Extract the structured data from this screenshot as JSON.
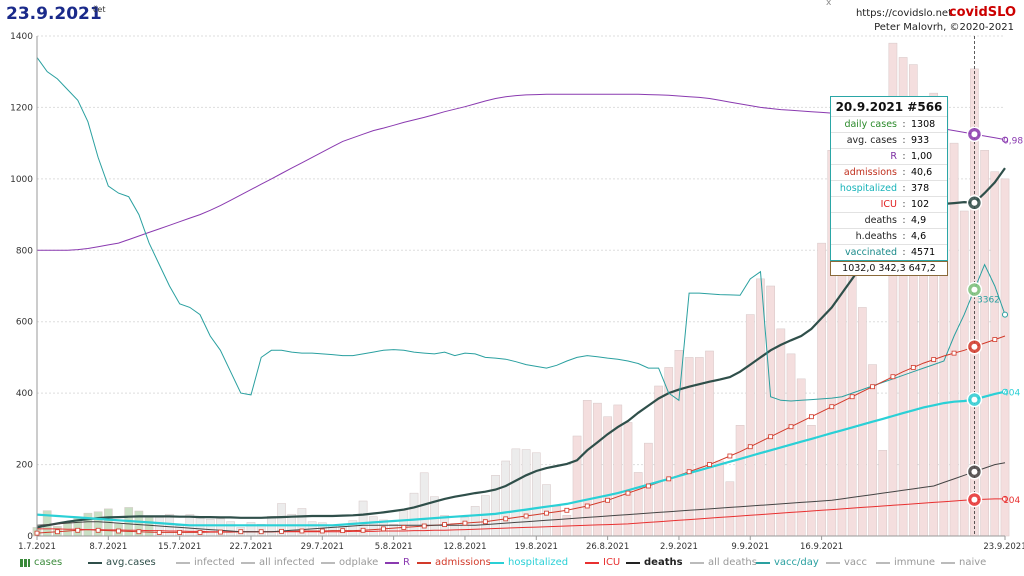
{
  "header": {
    "date": "23.9.2021",
    "weekday": "čet",
    "url": "https://covidslo.net",
    "brand_part1": "covid",
    "brand_part2": "SLO",
    "author": "Peter Malovrh, ©2020-2021",
    "close_mark": "x"
  },
  "colors": {
    "cases_bar": "#c9dfc4",
    "cases_bar_new": "#f4dede",
    "avg_cases": "#2f4f4a",
    "R": "#8a3ab0",
    "admissions": "#d23a2a",
    "hospitalized": "#2ad0d6",
    "ICU": "#e83030",
    "deaths": "#444444",
    "vacc_day": "#2aa0a0",
    "grid": "#dddddd"
  },
  "tooltip": {
    "title": "20.9.2021 #566",
    "rows": [
      {
        "label": "daily cases",
        "value": "1308",
        "color": "#2a8a2a"
      },
      {
        "label": "avg. cases",
        "value": "933",
        "color": "#222222"
      },
      {
        "label": "R",
        "value": "1,00",
        "color": "#7a2aa0"
      },
      {
        "label": "admissions",
        "value": "40,6",
        "color": "#c0301e"
      },
      {
        "label": "hospitalized",
        "value": "378",
        "color": "#17b3b9"
      },
      {
        "label": "ICU",
        "value": "102",
        "color": "#e02020"
      },
      {
        "label": "deaths",
        "value": "4,9",
        "color": "#222222"
      },
      {
        "label": "h.deaths",
        "value": "4,6",
        "color": "#222222"
      },
      {
        "label": "vaccinated",
        "value": "4571",
        "color": "#1a8a8a"
      }
    ],
    "bottom": "1032,0   342,3   647,2"
  },
  "legend": [
    {
      "label": "cases",
      "color": "#3a8a3a",
      "kind": "bars"
    },
    {
      "label": "avg.cases",
      "color": "#2f4f4a",
      "kind": "line"
    },
    {
      "label": "infected",
      "color": "#bbbbbb",
      "kind": "line"
    },
    {
      "label": "all infected",
      "color": "#bbbbbb",
      "kind": "line"
    },
    {
      "label": "odplake",
      "color": "#bbbbbb",
      "kind": "line"
    },
    {
      "label": "R",
      "color": "#8a3ab0",
      "kind": "line"
    },
    {
      "label": "admissions",
      "color": "#d23a2a",
      "kind": "line"
    },
    {
      "label": "hospitalized",
      "color": "#2ad0d6",
      "kind": "line"
    },
    {
      "label": "ICU",
      "color": "#e83030",
      "kind": "line"
    },
    {
      "label": "deaths",
      "color": "#222222",
      "kind": "line"
    },
    {
      "label": "all deaths",
      "color": "#bbbbbb",
      "kind": "line"
    },
    {
      "label": "vacc/day",
      "color": "#2aa0a0",
      "kind": "line"
    },
    {
      "label": "vacc",
      "color": "#bbbbbb",
      "kind": "line"
    },
    {
      "label": "immune",
      "color": "#bbbbbb",
      "kind": "line"
    },
    {
      "label": "naive",
      "color": "#bbbbbb",
      "kind": "line"
    }
  ],
  "chart_data": {
    "type": "bar",
    "ylim": [
      0,
      1400
    ],
    "yticks": [
      0,
      200,
      400,
      600,
      800,
      1000,
      1200,
      1400
    ],
    "xlim": [
      "1.7.2021",
      "23.9.2021"
    ],
    "xtick_labels": [
      "1.7.2021",
      "8.7.2021",
      "15.7.2021",
      "22.7.2021",
      "29.7.2021",
      "5.8.2021",
      "12.8.2021",
      "19.8.2021",
      "26.8.2021",
      "2.9.2021",
      "9.9.2021",
      "16.9.2021",
      "23.9.2021"
    ],
    "grid": true,
    "legend_position": "bottom",
    "highlighted_date": "20.9.2021",
    "end_labels": {
      "R": "0,98",
      "vacc_day": "3362",
      "hospitalized": "404",
      "ICU": "104"
    },
    "cases": [
      24,
      71,
      27,
      38,
      50,
      64,
      68,
      76,
      35,
      80,
      70,
      52,
      52,
      61,
      29,
      60,
      50,
      47,
      48,
      40,
      24,
      38,
      33,
      55,
      91,
      61,
      77,
      40,
      37,
      30,
      27,
      43,
      98,
      54,
      45,
      33,
      71,
      120,
      177,
      110,
      58,
      35,
      52,
      83,
      113,
      170,
      210,
      244,
      242,
      233,
      144,
      83,
      58,
      280,
      380,
      372,
      334,
      367,
      318,
      178,
      260,
      420,
      472,
      520,
      500,
      500,
      518,
      210,
      152,
      310,
      620,
      720,
      700,
      580,
      510,
      440,
      310,
      820,
      1080,
      980,
      890,
      640,
      480,
      240,
      1380,
      1340,
      1320,
      1180,
      1240,
      1220,
      1100,
      910,
      1308,
      1080,
      1020,
      1000
    ],
    "series": [
      {
        "name": "avg.cases",
        "values": [
          24,
          30,
          35,
          40,
          44,
          47,
          50,
          52,
          53,
          54,
          55,
          55,
          55,
          55,
          54,
          54,
          53,
          53,
          52,
          52,
          51,
          51,
          51,
          52,
          53,
          54,
          55,
          56,
          56,
          56,
          57,
          58,
          60,
          63,
          66,
          70,
          74,
          80,
          88,
          96,
          104,
          110,
          115,
          120,
          124,
          130,
          140,
          155,
          170,
          182,
          190,
          196,
          202,
          212,
          240,
          262,
          285,
          305,
          322,
          345,
          365,
          385,
          400,
          410,
          418,
          425,
          432,
          438,
          445,
          460,
          480,
          500,
          520,
          535,
          548,
          560,
          580,
          610,
          640,
          680,
          720,
          760,
          800,
          840,
          870,
          890,
          905,
          915,
          925,
          930,
          932,
          935,
          933,
          960,
          990,
          1030
        ]
      },
      {
        "name": "R",
        "values": [
          800,
          800,
          800,
          800,
          802,
          805,
          810,
          815,
          820,
          830,
          840,
          850,
          860,
          870,
          880,
          890,
          900,
          912,
          925,
          940,
          955,
          970,
          985,
          1000,
          1015,
          1030,
          1045,
          1060,
          1075,
          1090,
          1105,
          1115,
          1125,
          1135,
          1142,
          1150,
          1158,
          1165,
          1172,
          1180,
          1188,
          1195,
          1202,
          1210,
          1218,
          1225,
          1230,
          1233,
          1235,
          1236,
          1237,
          1237,
          1237,
          1237,
          1237,
          1237,
          1237,
          1237,
          1237,
          1237,
          1236,
          1235,
          1234,
          1232,
          1230,
          1228,
          1225,
          1220,
          1215,
          1210,
          1205,
          1200,
          1197,
          1194,
          1192,
          1190,
          1188,
          1186,
          1184,
          1182,
          1180,
          1178,
          1176,
          1172,
          1165,
          1160,
          1155,
          1150,
          1145,
          1140,
          1135,
          1130,
          1125,
          1120,
          1115,
          1110
        ]
      },
      {
        "name": "vacc/day",
        "values": [
          1340,
          1300,
          1280,
          1250,
          1220,
          1160,
          1060,
          980,
          960,
          950,
          900,
          820,
          760,
          700,
          650,
          640,
          620,
          560,
          520,
          460,
          400,
          395,
          500,
          520,
          520,
          515,
          512,
          512,
          510,
          508,
          505,
          505,
          510,
          515,
          520,
          522,
          520,
          515,
          512,
          510,
          515,
          505,
          512,
          510,
          500,
          498,
          495,
          488,
          480,
          475,
          470,
          478,
          490,
          500,
          505,
          502,
          498,
          495,
          490,
          483,
          470,
          470,
          400,
          380,
          680,
          680,
          678,
          676,
          675,
          674,
          720,
          740,
          390,
          380,
          378,
          380,
          382,
          384,
          386,
          390,
          400,
          410,
          420,
          430,
          440,
          450,
          460,
          470,
          480,
          490,
          560,
          620,
          690,
          760,
          700,
          620
        ]
      },
      {
        "name": "admissions",
        "values": [
          8,
          10,
          12,
          14,
          16,
          18,
          16,
          15,
          14,
          13,
          12,
          11,
          10,
          10,
          10,
          10,
          10,
          11,
          11,
          11,
          12,
          12,
          12,
          12,
          13,
          13,
          14,
          14,
          14,
          15,
          15,
          15,
          16,
          18,
          20,
          22,
          24,
          26,
          28,
          30,
          32,
          34,
          36,
          38,
          40,
          44,
          48,
          52,
          56,
          60,
          64,
          68,
          72,
          78,
          84,
          92,
          100,
          110,
          120,
          130,
          140,
          150,
          160,
          170,
          180,
          190,
          200,
          212,
          224,
          236,
          250,
          264,
          278,
          292,
          306,
          320,
          334,
          348,
          362,
          376,
          390,
          404,
          418,
          432,
          446,
          460,
          472,
          484,
          494,
          504,
          512,
          520,
          530,
          540,
          550,
          560
        ]
      },
      {
        "name": "hospitalized",
        "values": [
          60,
          58,
          56,
          54,
          52,
          50,
          48,
          46,
          44,
          42,
          40,
          38,
          36,
          34,
          32,
          30,
          30,
          30,
          30,
          30,
          30,
          30,
          30,
          30,
          30,
          30,
          30,
          30,
          30,
          30,
          32,
          34,
          36,
          38,
          40,
          42,
          44,
          46,
          48,
          50,
          52,
          54,
          56,
          58,
          60,
          62,
          66,
          70,
          74,
          78,
          82,
          86,
          90,
          96,
          102,
          108,
          114,
          120,
          128,
          136,
          144,
          152,
          160,
          168,
          176,
          184,
          192,
          200,
          208,
          216,
          224,
          232,
          240,
          248,
          256,
          264,
          272,
          280,
          288,
          296,
          304,
          312,
          320,
          328,
          336,
          344,
          352,
          360,
          366,
          372,
          376,
          378,
          382,
          390,
          398,
          404
        ]
      },
      {
        "name": "ICU",
        "values": [
          20,
          20,
          20,
          19,
          19,
          18,
          18,
          17,
          17,
          16,
          16,
          15,
          15,
          14,
          14,
          13,
          13,
          12,
          12,
          12,
          12,
          12,
          12,
          12,
          12,
          12,
          12,
          12,
          12,
          12,
          12,
          13,
          13,
          13,
          14,
          14,
          14,
          15,
          15,
          16,
          16,
          17,
          18,
          19,
          20,
          21,
          22,
          23,
          24,
          25,
          26,
          27,
          28,
          29,
          30,
          31,
          32,
          33,
          34,
          36,
          38,
          40,
          42,
          44,
          46,
          48,
          50,
          52,
          54,
          56,
          58,
          60,
          62,
          64,
          66,
          68,
          70,
          72,
          74,
          76,
          78,
          80,
          82,
          84,
          86,
          88,
          90,
          92,
          94,
          96,
          98,
          100,
          102,
          103,
          104,
          104
        ]
      },
      {
        "name": "deaths",
        "values": [
          30,
          32,
          34,
          36,
          38,
          40,
          40,
          38,
          36,
          34,
          32,
          30,
          28,
          26,
          24,
          22,
          20,
          18,
          16,
          14,
          12,
          12,
          12,
          12,
          14,
          16,
          18,
          20,
          22,
          24,
          26,
          28,
          30,
          30,
          30,
          30,
          30,
          30,
          30,
          30,
          30,
          30,
          30,
          30,
          32,
          34,
          36,
          38,
          40,
          42,
          44,
          46,
          48,
          50,
          52,
          54,
          56,
          58,
          60,
          62,
          64,
          66,
          68,
          70,
          72,
          74,
          76,
          78,
          80,
          82,
          84,
          86,
          88,
          90,
          92,
          94,
          96,
          98,
          100,
          104,
          108,
          112,
          116,
          120,
          124,
          128,
          132,
          136,
          140,
          150,
          160,
          170,
          180,
          190,
          200,
          205
        ]
      }
    ]
  }
}
